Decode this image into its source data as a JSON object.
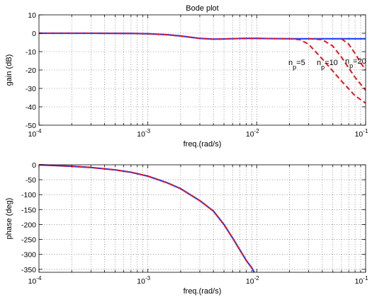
{
  "chart_data": [
    {
      "type": "line",
      "title": "Bode plot",
      "xlabel": "freq.(rad/s)",
      "ylabel": "gain (dB)",
      "xscale": "log",
      "xlim": [
        0.0001,
        0.1
      ],
      "ylim": [
        -50,
        10
      ],
      "yticks": [
        10,
        0,
        -10,
        -20,
        -30,
        -40,
        -50
      ],
      "xticks": [
        {
          "base": "10",
          "exp": "-4"
        },
        {
          "base": "10",
          "exp": "-3"
        },
        {
          "base": "10",
          "exp": "-2"
        },
        {
          "base": "10",
          "exp": "-1"
        }
      ],
      "grid": true,
      "series": [
        {
          "style": "solid",
          "color": "#1f3fff",
          "x": [
            0.0001,
            0.0003,
            0.0007,
            0.001,
            0.0015,
            0.002,
            0.003,
            0.004,
            0.005,
            0.0065,
            0.008,
            0.01,
            0.013,
            0.02,
            0.03,
            0.05,
            0.1
          ],
          "y": [
            0,
            0,
            -0.1,
            -0.3,
            -0.8,
            -1.5,
            -2.8,
            -3.2,
            -3.1,
            -2.9,
            -2.8,
            -2.8,
            -2.9,
            -3.0,
            -3.0,
            -3.0,
            -3.0
          ]
        },
        {
          "style": "dashed",
          "color": "#e8141c",
          "x": [
            0.0001,
            0.0003,
            0.0007,
            0.001,
            0.0015,
            0.002,
            0.003,
            0.004,
            0.005,
            0.0065,
            0.008,
            0.01,
            0.013,
            0.02,
            0.025,
            0.03,
            0.04,
            0.06,
            0.08,
            0.1
          ],
          "y": [
            0,
            0,
            -0.1,
            -0.3,
            -0.8,
            -1.5,
            -2.8,
            -3.2,
            -3.1,
            -2.9,
            -2.8,
            -2.8,
            -2.9,
            -3.0,
            -3.5,
            -6,
            -14,
            -26,
            -34,
            -38
          ]
        },
        {
          "style": "dashed",
          "color": "#e8141c",
          "x": [
            0.03,
            0.04,
            0.05,
            0.06,
            0.08,
            0.1
          ],
          "y": [
            -3.0,
            -3.5,
            -7,
            -13,
            -24,
            -31
          ]
        },
        {
          "style": "dashed",
          "color": "#e8141c",
          "x": [
            0.06,
            0.07,
            0.08,
            0.09,
            0.1
          ],
          "y": [
            -3.0,
            -6,
            -11,
            -16,
            -20
          ]
        }
      ],
      "annotations": [
        {
          "text": "n",
          "sub": "p",
          "rest": "=5"
        },
        {
          "text": "n",
          "sub": "p",
          "rest": "=10"
        },
        {
          "text": "n",
          "sub": "p",
          "rest": "=20"
        }
      ]
    },
    {
      "type": "line",
      "title": "",
      "xlabel": "freq.(rad/s)",
      "ylabel": "phase (deg)",
      "xscale": "log",
      "xlim": [
        0.0001,
        0.1
      ],
      "ylim": [
        -360,
        0
      ],
      "yticks": [
        0,
        -50,
        -100,
        -150,
        -200,
        -250,
        -300,
        -350
      ],
      "xticks": [
        {
          "base": "10",
          "exp": "-4"
        },
        {
          "base": "10",
          "exp": "-3"
        },
        {
          "base": "10",
          "exp": "-2"
        },
        {
          "base": "10",
          "exp": "-1"
        }
      ],
      "grid": true,
      "series": [
        {
          "style": "solid",
          "color": "#1f3fff",
          "x": [
            0.0001,
            0.0002,
            0.0003,
            0.0005,
            0.0007,
            0.001,
            0.0015,
            0.002,
            0.003,
            0.004,
            0.005,
            0.006,
            0.007,
            0.008,
            0.009,
            0.0095
          ],
          "y": [
            0,
            -5,
            -9,
            -17,
            -25,
            -38,
            -60,
            -80,
            -120,
            -155,
            -200,
            -245,
            -285,
            -320,
            -345,
            -360
          ]
        },
        {
          "style": "dashed",
          "color": "#e8141c",
          "x": [
            0.0001,
            0.0002,
            0.0003,
            0.0005,
            0.0007,
            0.001,
            0.0015,
            0.002,
            0.003,
            0.004,
            0.005,
            0.006,
            0.007,
            0.008,
            0.009,
            0.0095
          ],
          "y": [
            0,
            -5,
            -9,
            -17,
            -25,
            -38,
            -60,
            -80,
            -120,
            -155,
            -200,
            -245,
            -285,
            -320,
            -345,
            -360
          ]
        }
      ]
    }
  ]
}
